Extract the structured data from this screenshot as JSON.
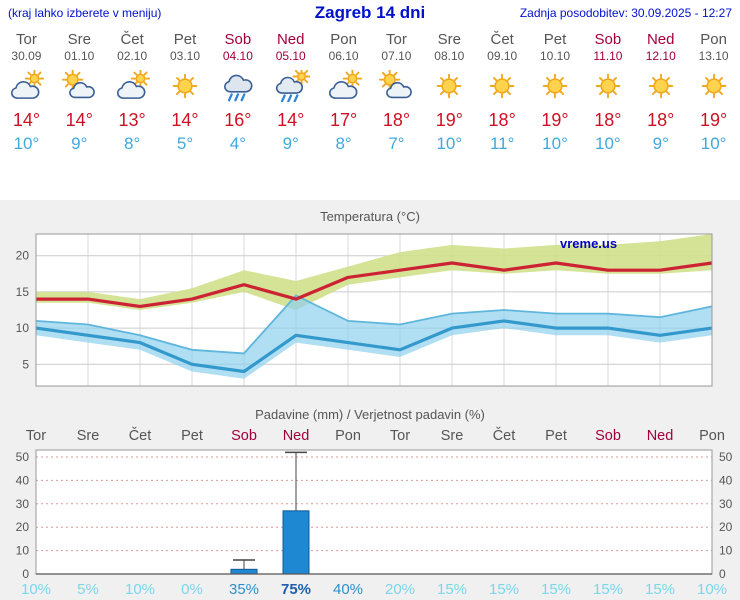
{
  "header": {
    "menu_hint": "(kraj lahko izberete v meniju)",
    "title": "Zagreb 14 dni",
    "last_update": "Zadnja posodobitev: 30.09.2025 - 12:27"
  },
  "colors": {
    "header_blue": "#0011cc",
    "tmax_red": "#cc1122",
    "tmin_blue": "#3fa9dc",
    "weekend_red": "#a1003c",
    "weekday_gray": "#555555",
    "watermark_blue": "#0000bb"
  },
  "days": [
    {
      "name": "Tor",
      "date": "30.09",
      "weekend": false,
      "icon": "cloud-sun",
      "tmax": 14,
      "tmin": 10
    },
    {
      "name": "Sre",
      "date": "01.10",
      "weekend": false,
      "icon": "sun-cloud",
      "tmax": 14,
      "tmin": 9
    },
    {
      "name": "Čet",
      "date": "02.10",
      "weekend": false,
      "icon": "cloud-sun",
      "tmax": 13,
      "tmin": 8
    },
    {
      "name": "Pet",
      "date": "03.10",
      "weekend": false,
      "icon": "sunny",
      "tmax": 14,
      "tmin": 5
    },
    {
      "name": "Sob",
      "date": "04.10",
      "weekend": true,
      "icon": "rain",
      "tmax": 16,
      "tmin": 4
    },
    {
      "name": "Ned",
      "date": "05.10",
      "weekend": true,
      "icon": "showers",
      "tmax": 14,
      "tmin": 9
    },
    {
      "name": "Pon",
      "date": "06.10",
      "weekend": false,
      "icon": "cloud-sun",
      "tmax": 17,
      "tmin": 8
    },
    {
      "name": "Tor",
      "date": "07.10",
      "weekend": false,
      "icon": "sun-cloud",
      "tmax": 18,
      "tmin": 7
    },
    {
      "name": "Sre",
      "date": "08.10",
      "weekend": false,
      "icon": "sunny",
      "tmax": 19,
      "tmin": 10
    },
    {
      "name": "Čet",
      "date": "09.10",
      "weekend": false,
      "icon": "sunny",
      "tmax": 18,
      "tmin": 11
    },
    {
      "name": "Pet",
      "date": "10.10",
      "weekend": false,
      "icon": "sunny",
      "tmax": 19,
      "tmin": 10
    },
    {
      "name": "Sob",
      "date": "11.10",
      "weekend": true,
      "icon": "sunny",
      "tmax": 18,
      "tmin": 10
    },
    {
      "name": "Ned",
      "date": "12.10",
      "weekend": true,
      "icon": "sunny",
      "tmax": 18,
      "tmin": 9
    },
    {
      "name": "Pon",
      "date": "13.10",
      "weekend": false,
      "icon": "sunny",
      "tmax": 19,
      "tmin": 10
    }
  ],
  "chart_data": [
    {
      "type": "line",
      "title": "Temperatura (°C)",
      "watermark": "vreme.us",
      "categories": [
        "Tor",
        "Sre",
        "Čet",
        "Pet",
        "Sob",
        "Ned",
        "Pon",
        "Tor",
        "Sre",
        "Čet",
        "Pet",
        "Sob",
        "Ned",
        "Pon"
      ],
      "ylim": [
        2,
        23
      ],
      "yticks": [
        5,
        10,
        15,
        20
      ],
      "series": [
        {
          "name": "max-temperature",
          "color": "#cc2233",
          "width": 3.2,
          "values": [
            14,
            14,
            13,
            14,
            16,
            14,
            17,
            18,
            19,
            18,
            19,
            18,
            18,
            19
          ]
        },
        {
          "name": "min-temperature",
          "color": "#3399cc",
          "width": 3.2,
          "values": [
            10,
            9,
            8,
            5,
            4,
            9,
            8,
            7,
            10,
            11,
            10,
            10,
            9,
            10
          ]
        }
      ],
      "bands": [
        {
          "name": "max-range",
          "color": "#cfe08a",
          "opacity": 0.9,
          "upper": [
            15,
            15,
            14,
            15.5,
            18,
            16.5,
            18.5,
            20.5,
            21.5,
            21,
            21.5,
            21.5,
            22,
            23
          ],
          "lower": [
            13.5,
            13.5,
            12.5,
            13.5,
            15,
            12.5,
            16,
            17,
            18,
            17.5,
            18,
            17.5,
            17.5,
            18
          ]
        },
        {
          "name": "min-range",
          "color": "#8fd0ec",
          "opacity": 0.7,
          "edge_color": "#5fb6dd",
          "upper": [
            11,
            10.5,
            9,
            7,
            6.5,
            14.5,
            11,
            10.5,
            12,
            12.5,
            12,
            12,
            11.5,
            13
          ],
          "lower": [
            9,
            8,
            7,
            4,
            3,
            8,
            7,
            6,
            9,
            10,
            9,
            9,
            8,
            9
          ]
        }
      ]
    },
    {
      "type": "bar",
      "title": "Padavine (mm) / Verjetnost padavin (%)",
      "categories": [
        "Tor",
        "Sre",
        "Čet",
        "Pet",
        "Sob",
        "Ned",
        "Pon",
        "Tor",
        "Sre",
        "Čet",
        "Pet",
        "Sob",
        "Ned",
        "Pon"
      ],
      "ylim": [
        0,
        53
      ],
      "yticks": [
        0,
        10,
        20,
        30,
        40,
        50
      ],
      "values": [
        0,
        0,
        0,
        0,
        2,
        27,
        0,
        0,
        0,
        0,
        0,
        0,
        0,
        0
      ],
      "whisker_max": [
        0,
        0,
        0,
        0,
        6,
        52,
        0,
        0,
        0,
        0,
        0,
        0,
        0,
        0
      ],
      "probabilities": [
        10,
        5,
        10,
        0,
        35,
        75,
        40,
        20,
        15,
        15,
        15,
        15,
        15,
        10
      ],
      "bar_color": "#1e88d2",
      "bar_border": "#0f5a96",
      "whisker_color": "#444444",
      "prob_colors": {
        "low": "#7ad6ec",
        "mid": "#2f8fc6",
        "high": "#1d5fae"
      }
    }
  ]
}
